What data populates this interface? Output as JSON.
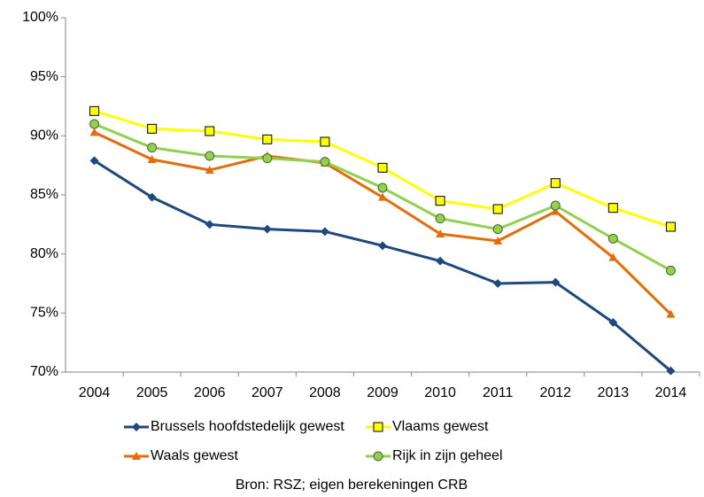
{
  "chart_data": {
    "type": "line",
    "categories": [
      "2004",
      "2005",
      "2006",
      "2007",
      "2008",
      "2009",
      "2010",
      "2011",
      "2012",
      "2013",
      "2014"
    ],
    "series": [
      {
        "name": "Brussels hoofdstedelijk gewest",
        "color": "#1f497d",
        "marker": "diamond",
        "values": [
          87.9,
          84.8,
          82.5,
          82.1,
          81.9,
          80.7,
          79.4,
          77.5,
          77.6,
          74.2,
          70.1
        ]
      },
      {
        "name": "Vlaams gewest",
        "color": "#ffff00",
        "marker": "square",
        "values": [
          92.1,
          90.6,
          90.4,
          89.7,
          89.5,
          87.3,
          84.5,
          83.8,
          86.0,
          83.9,
          82.3
        ]
      },
      {
        "name": "Waals gewest",
        "color": "#e46c0a",
        "marker": "triangle",
        "values": [
          90.3,
          88.0,
          87.1,
          88.3,
          87.7,
          84.8,
          81.7,
          81.1,
          83.6,
          79.7,
          74.9
        ]
      },
      {
        "name": "Rijk in zijn geheel",
        "color": "#92d050",
        "marker": "circle",
        "values": [
          91.0,
          89.0,
          88.3,
          88.1,
          87.8,
          85.6,
          83.0,
          82.1,
          84.1,
          81.3,
          78.6
        ]
      }
    ],
    "ylim": [
      70,
      100
    ],
    "yticks": [
      {
        "value": 70,
        "label": "70%"
      },
      {
        "value": 75,
        "label": "75%"
      },
      {
        "value": 80,
        "label": "80%"
      },
      {
        "value": 85,
        "label": "85%"
      },
      {
        "value": 90,
        "label": "90%"
      },
      {
        "value": 95,
        "label": "95%"
      },
      {
        "value": 100,
        "label": "100%"
      }
    ],
    "grid": false,
    "source": "Bron: RSZ; eigen berekeningen CRB"
  }
}
